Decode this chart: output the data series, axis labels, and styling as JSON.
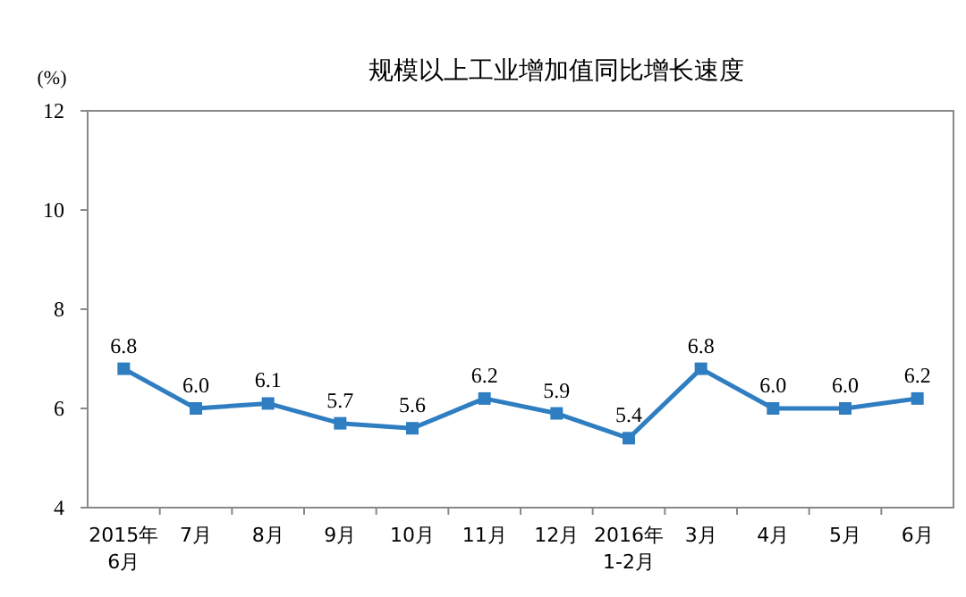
{
  "chart_data": {
    "type": "line",
    "title": "规模以上工业增加值同比增长速度",
    "ylabel": "(%)",
    "categories": [
      "2015年\n6月",
      "7月",
      "8月",
      "9月",
      "10月",
      "11月",
      "12月",
      "2016年\n1-2月",
      "3月",
      "4月",
      "5月",
      "6月"
    ],
    "series": [
      {
        "color": "#2f7ec1",
        "values": [
          6.8,
          6.0,
          6.1,
          5.7,
          5.6,
          6.2,
          5.9,
          5.4,
          6.8,
          6.0,
          6.0,
          6.2
        ],
        "value_labels": [
          "6.8",
          "6.0",
          "6.1",
          "5.7",
          "5.6",
          "6.2",
          "5.9",
          "5.4",
          "6.8",
          "6.0",
          "6.0",
          "6.2"
        ]
      }
    ],
    "ylim": [
      4,
      12
    ],
    "yticks": [
      4,
      6,
      8,
      10,
      12
    ],
    "marker": "square",
    "grid": false
  }
}
